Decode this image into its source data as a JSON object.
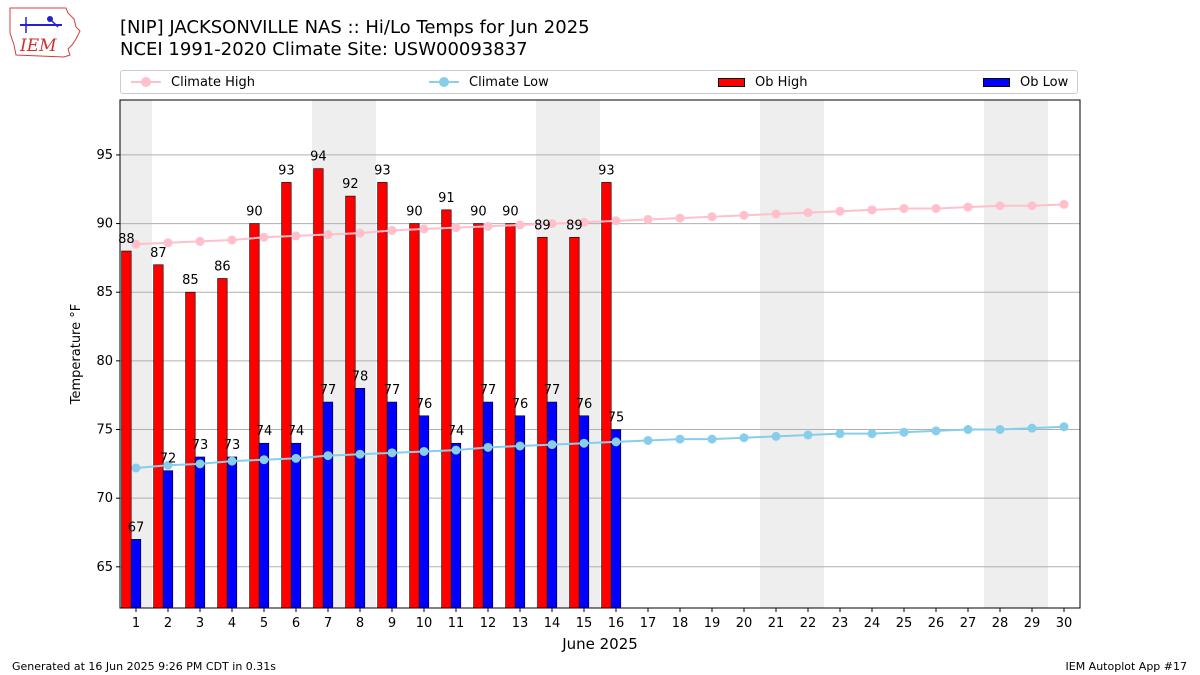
{
  "header": {
    "logo_text": "IEM",
    "title_line1": "[NIP] JACKSONVILLE NAS :: Hi/Lo Temps for Jun 2025",
    "title_line2": "NCEI 1991-2020 Climate Site: USW00093837"
  },
  "legend": {
    "climate_high": "Climate High",
    "climate_low": "Climate Low",
    "ob_high": "Ob High",
    "ob_low": "Ob Low"
  },
  "footer": {
    "generated": "Generated at 16 Jun 2025 9:26 PM CDT in 0.31s",
    "app": "IEM Autoplot App #17"
  },
  "colors": {
    "ob_high": "#ff0000",
    "ob_low": "#0000ff",
    "climate_high": "#ffc0cb",
    "climate_low": "#87ceeb",
    "weekend_shade": "#eeeeee",
    "grid": "#b0b0b0"
  },
  "chart_data": {
    "type": "bar",
    "xlabel": "June 2025",
    "ylabel": "Temperature °F",
    "xlim": [
      0.5,
      30.5
    ],
    "ylim": [
      62,
      99
    ],
    "yticks": [
      65,
      70,
      75,
      80,
      85,
      90,
      95
    ],
    "days": [
      1,
      2,
      3,
      4,
      5,
      6,
      7,
      8,
      9,
      10,
      11,
      12,
      13,
      14,
      15,
      16,
      17,
      18,
      19,
      20,
      21,
      22,
      23,
      24,
      25,
      26,
      27,
      28,
      29,
      30
    ],
    "shaded_days": [
      1,
      7,
      8,
      14,
      15,
      21,
      22,
      28,
      29
    ],
    "grid": "horizontal",
    "legend_position": "top",
    "series": [
      {
        "name": "Ob High",
        "kind": "bar",
        "values": [
          88,
          87,
          85,
          86,
          90,
          93,
          94,
          92,
          93,
          90,
          91,
          90,
          90,
          89,
          89,
          93
        ]
      },
      {
        "name": "Ob Low",
        "kind": "bar",
        "values": [
          67,
          72,
          73,
          73,
          74,
          74,
          77,
          78,
          77,
          76,
          74,
          77,
          76,
          77,
          76,
          75
        ]
      },
      {
        "name": "Climate High",
        "kind": "line",
        "values": [
          88.5,
          88.6,
          88.7,
          88.8,
          89.0,
          89.1,
          89.2,
          89.3,
          89.5,
          89.6,
          89.7,
          89.8,
          89.9,
          90.0,
          90.1,
          90.2,
          90.3,
          90.4,
          90.5,
          90.6,
          90.7,
          90.8,
          90.9,
          91.0,
          91.1,
          91.1,
          91.2,
          91.3,
          91.3,
          91.4
        ]
      },
      {
        "name": "Climate Low",
        "kind": "line",
        "values": [
          72.2,
          72.4,
          72.5,
          72.7,
          72.8,
          72.9,
          73.1,
          73.2,
          73.3,
          73.4,
          73.5,
          73.7,
          73.8,
          73.9,
          74.0,
          74.1,
          74.2,
          74.3,
          74.3,
          74.4,
          74.5,
          74.6,
          74.7,
          74.7,
          74.8,
          74.9,
          75.0,
          75.0,
          75.1,
          75.2
        ]
      }
    ]
  }
}
